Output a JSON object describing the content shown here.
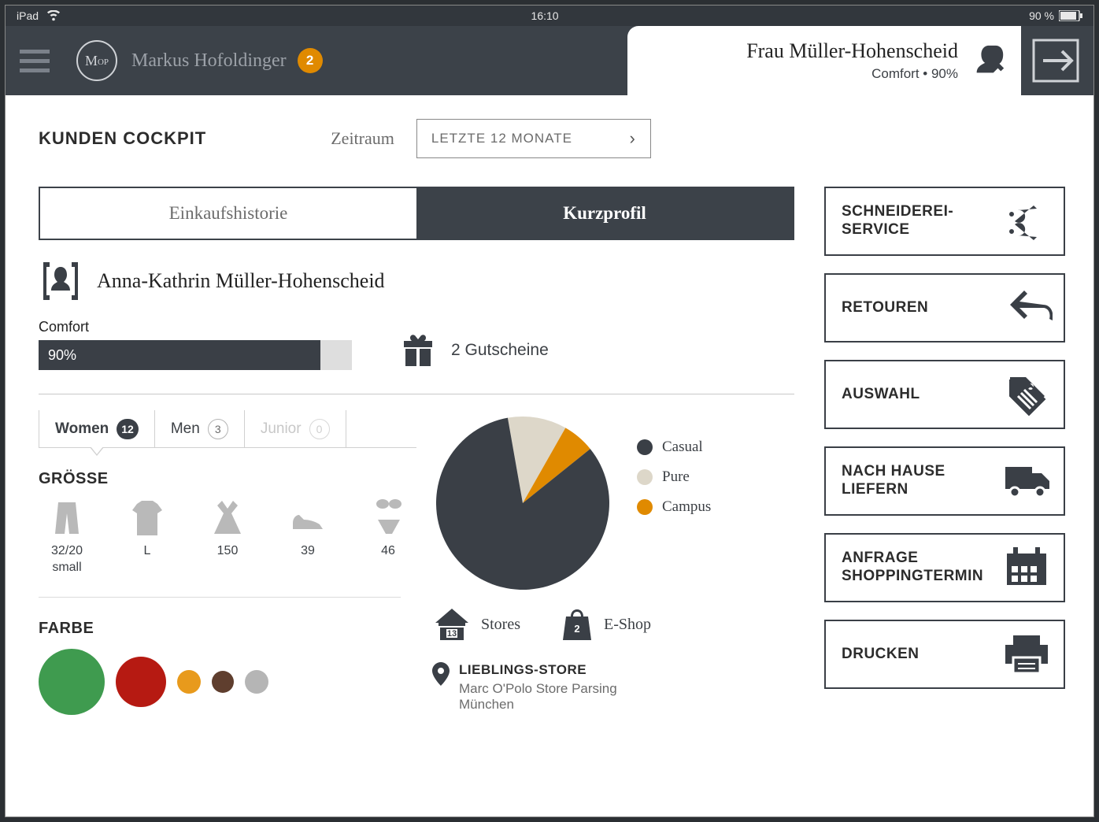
{
  "statusbar": {
    "device": "iPad",
    "time": "16:10",
    "battery_text": "90 %"
  },
  "header": {
    "staff_name": "Markus Hofoldinger",
    "notification_count": "2",
    "customer_name": "Frau Müller-Hohenscheid",
    "customer_sub": "Comfort • 90%"
  },
  "page": {
    "title": "KUNDEN COCKPIT",
    "period_label": "Zeitraum",
    "period_value": "LETZTE 12 MONATE"
  },
  "tabs": {
    "history": "Einkaufshistorie",
    "profile": "Kurzprofil"
  },
  "profile": {
    "full_name": "Anna-Kathrin Müller-Hohenscheid",
    "comfort_label": "Comfort",
    "comfort_pct": 90,
    "comfort_text": "90%",
    "vouchers_text": "2 Gutscheine"
  },
  "categories": {
    "tabs": [
      {
        "label": "Women",
        "count": "12",
        "active": true
      },
      {
        "label": "Men",
        "count": "3",
        "active": false
      },
      {
        "label": "Junior",
        "count": "0",
        "active": false,
        "dim": true
      }
    ],
    "size_heading": "GRÖSSE",
    "sizes": [
      {
        "icon": "pants",
        "value": "32/20\nsmall"
      },
      {
        "icon": "tshirt",
        "value": "L"
      },
      {
        "icon": "dress",
        "value": "150"
      },
      {
        "icon": "shoe",
        "value": "39"
      },
      {
        "icon": "bikini",
        "value": "46"
      }
    ],
    "color_heading": "FARBE",
    "colors": [
      {
        "hex": "#3f9b4f",
        "size": 84
      },
      {
        "hex": "#b61a12",
        "size": 64
      },
      {
        "hex": "#e89a1c",
        "size": 30
      },
      {
        "hex": "#5f3e2e",
        "size": 28
      },
      {
        "hex": "#b5b5b5",
        "size": 30
      }
    ]
  },
  "pie": {
    "type": "pie",
    "radius": 110,
    "background": "#ffffff",
    "slices": [
      {
        "label": "Casual",
        "value": 83,
        "color": "#3a3f46"
      },
      {
        "label": "Pure",
        "value": 11,
        "color": "#ddd7c9"
      },
      {
        "label": "Campus",
        "value": 6,
        "color": "#e08a00"
      }
    ]
  },
  "channels": {
    "stores_count": "13",
    "stores_label": "Stores",
    "eshop_count": "2",
    "eshop_label": "E-Shop"
  },
  "favorite": {
    "heading": "LIEBLINGS-STORE",
    "value": "Marc O'Polo Store Parsing München"
  },
  "actions": [
    {
      "label": "SCHNEIDEREI-\nSERVICE",
      "icon": "scissors"
    },
    {
      "label": "RETOUREN",
      "icon": "back"
    },
    {
      "label": "AUSWAHL",
      "icon": "tag"
    },
    {
      "label": "NACH HAUSE\nLIEFERN",
      "icon": "truck"
    },
    {
      "label": "ANFRAGE\nSHOPPINGTERMIN",
      "icon": "calendar"
    },
    {
      "label": "DRUCKEN",
      "icon": "printer"
    }
  ],
  "colors_ref": {
    "dark": "#3a3f46",
    "orange": "#e08a00",
    "beige": "#ddd7c9"
  }
}
